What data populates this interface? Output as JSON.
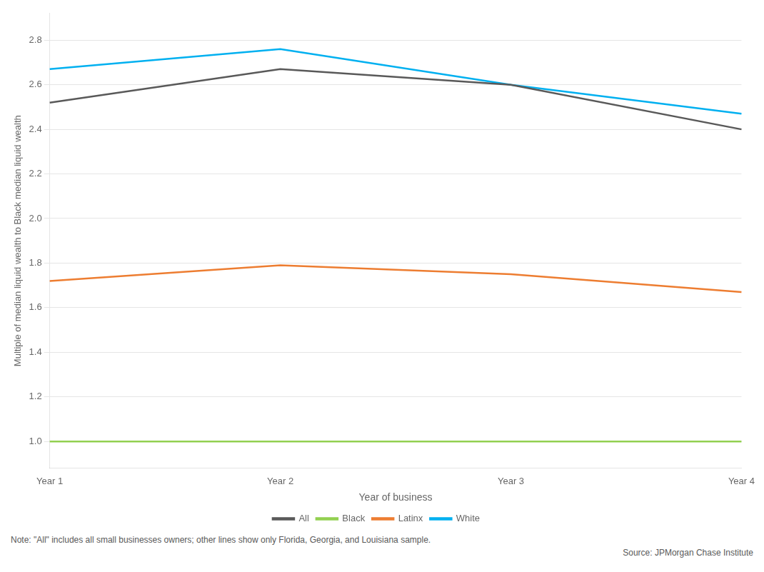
{
  "chart_data": {
    "type": "line",
    "categories": [
      "Year 1",
      "Year 2",
      "Year 3",
      "Year 4"
    ],
    "series": [
      {
        "name": "All",
        "color": "#595959",
        "values": [
          2.52,
          2.67,
          2.6,
          2.4
        ]
      },
      {
        "name": "Black",
        "color": "#92d050",
        "values": [
          1.0,
          1.0,
          1.0,
          1.0
        ]
      },
      {
        "name": "Latinx",
        "color": "#ed7d31",
        "values": [
          1.72,
          1.79,
          1.75,
          1.67
        ]
      },
      {
        "name": "White",
        "color": "#00b0f0",
        "values": [
          2.67,
          2.76,
          2.6,
          2.47
        ]
      }
    ],
    "xlabel": "Year of business",
    "ylabel": "Multiple of median liquid wealth to Black median liquid wealth",
    "ylim": [
      0.88,
      2.92
    ],
    "yticks": [
      {
        "value": 1.0,
        "label": "1.0"
      },
      1.2,
      1.4,
      1.6,
      1.8,
      {
        "value": 2.0,
        "label": "2.0"
      },
      2.2,
      2.4,
      2.6,
      2.8
    ],
    "grid": true,
    "legend": "bottom",
    "annotations": [
      "Note: \"All\" includes all small businesses owners; other lines show only Florida, Georgia, and Louisiana sample.",
      "Source: JPMorgan Chase Institute"
    ]
  }
}
